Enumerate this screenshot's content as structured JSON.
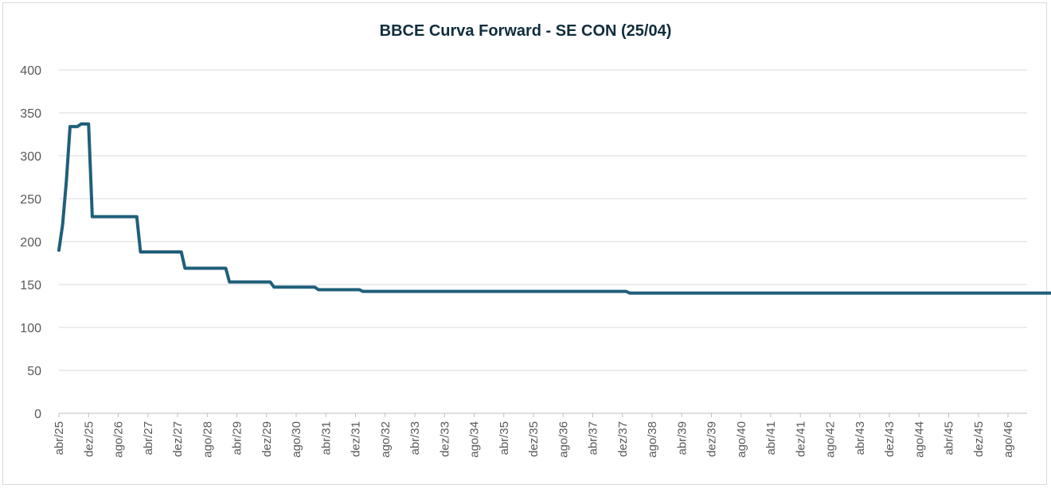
{
  "chart_data": {
    "type": "line",
    "title": "BBCE Curva Forward - SE CON (25/04)",
    "xlabel": "",
    "ylabel": "",
    "ylim": [
      0,
      400
    ],
    "yticks": [
      0,
      50,
      100,
      150,
      200,
      250,
      300,
      350,
      400
    ],
    "grid": true,
    "legend": "none",
    "line_color": "#1f5f7a",
    "x_tick_labels": [
      "abr/25",
      "dez/25",
      "ago/26",
      "abr/27",
      "dez/27",
      "ago/28",
      "abr/29",
      "dez/29",
      "ago/30",
      "abr/31",
      "dez/31",
      "ago/32",
      "abr/33",
      "dez/33",
      "ago/34",
      "abr/35",
      "dez/35",
      "ago/36",
      "abr/37",
      "dez/37",
      "ago/38",
      "abr/39",
      "dez/39",
      "ago/40",
      "abr/41",
      "dez/41",
      "ago/42",
      "abr/43",
      "dez/43",
      "ago/44",
      "abr/45",
      "dez/45",
      "ago/46"
    ],
    "series": [
      {
        "values": [
          190,
          220,
          270,
          334,
          334,
          334,
          337,
          337,
          337,
          229,
          229,
          229,
          229,
          229,
          229,
          229,
          229,
          229,
          229,
          229,
          229,
          229,
          188,
          188,
          188,
          188,
          188,
          188,
          188,
          188,
          188,
          188,
          188,
          188,
          169,
          169,
          169,
          169,
          169,
          169,
          169,
          169,
          169,
          169,
          169,
          169,
          153,
          153,
          153,
          153,
          153,
          153,
          153,
          153,
          153,
          153,
          153,
          153,
          147,
          147,
          147,
          147,
          147,
          147,
          147,
          147,
          147,
          147,
          147,
          147,
          144,
          144,
          144,
          144,
          144,
          144,
          144,
          144,
          144,
          144,
          144,
          144,
          142,
          142,
          142,
          142,
          142,
          142,
          142,
          142,
          142,
          142,
          142,
          142,
          142,
          142,
          142,
          142,
          142,
          142,
          142,
          142,
          142,
          142,
          142,
          142,
          142,
          142,
          142,
          142,
          142,
          142,
          142,
          142,
          142,
          142,
          142,
          142,
          142,
          142,
          142,
          142,
          142,
          142,
          142,
          142,
          142,
          142,
          142,
          142,
          142,
          142,
          142,
          142,
          142,
          142,
          142,
          142,
          142,
          142,
          142,
          142,
          142,
          142,
          142,
          142,
          142,
          142,
          142,
          142,
          142,
          142,
          142,
          142,
          140,
          140,
          140,
          140,
          140,
          140,
          140,
          140,
          140,
          140,
          140,
          140,
          140,
          140,
          140,
          140,
          140,
          140,
          140,
          140,
          140,
          140,
          140,
          140,
          140,
          140,
          140,
          140,
          140,
          140,
          140,
          140,
          140,
          140,
          140,
          140,
          140,
          140,
          140,
          140,
          140,
          140,
          140,
          140,
          140,
          140,
          140,
          140,
          140,
          140,
          140,
          140,
          140,
          140,
          140,
          140,
          140,
          140,
          140,
          140,
          140,
          140,
          140,
          140,
          140,
          140,
          140,
          140,
          140,
          140,
          140,
          140,
          140,
          140,
          140,
          140,
          140,
          140,
          140,
          140,
          140,
          140,
          140,
          140,
          140,
          140,
          140,
          140,
          140,
          140,
          140,
          140,
          140,
          140,
          140,
          140,
          140,
          140,
          140,
          140,
          140,
          140,
          140,
          140,
          140,
          140,
          140,
          140,
          140,
          140,
          140,
          140,
          140,
          140,
          140
        ]
      }
    ]
  }
}
